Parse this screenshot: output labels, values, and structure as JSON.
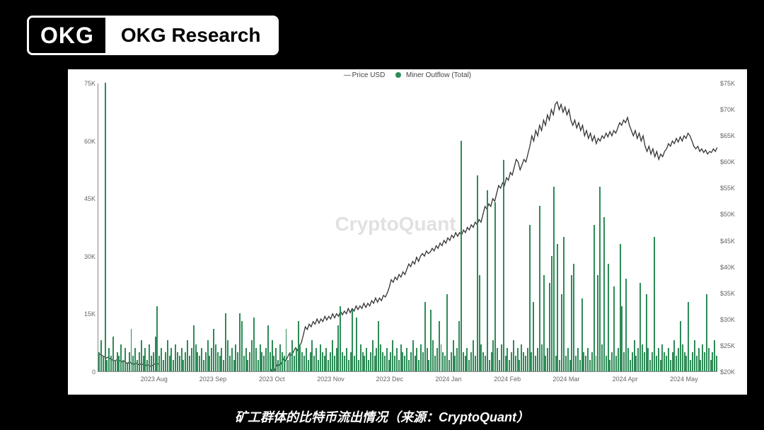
{
  "logo": {
    "left": "OKG",
    "right": "OKG Research"
  },
  "caption": "矿工群体的比特币流出情况（来源：CryptoQuant）",
  "watermark": "CryptoQuant",
  "legend": {
    "series1": "Price USD",
    "series2": "Miner Outflow (Total)",
    "line_color": "#555555",
    "dot_color": "#2e8b57"
  },
  "chart": {
    "background": "#ffffff",
    "axis_color": "#888888",
    "label_color": "#666666",
    "label_fontsize": 9,
    "left_axis": {
      "min": 0,
      "max": 75,
      "ticks": [
        0,
        15,
        30,
        45,
        60,
        75
      ],
      "labels": [
        "0",
        "15K",
        "30K",
        "45K",
        "60K",
        "75K"
      ]
    },
    "right_axis": {
      "min": 20,
      "max": 75,
      "ticks": [
        20,
        25,
        30,
        35,
        40,
        45,
        50,
        55,
        60,
        65,
        70,
        75
      ],
      "labels": [
        "$20K",
        "$25K",
        "$30K",
        "$35K",
        "$40K",
        "$45K",
        "$50K",
        "$55K",
        "$60K",
        "$65K",
        "$70K",
        "$75K"
      ]
    },
    "x_axis": {
      "labels": [
        "2023 Aug",
        "2023 Sep",
        "2023 Oct",
        "2023 Nov",
        "2023 Dec",
        "2024 Jan",
        "2024 Feb",
        "2024 Mar",
        "2024 Apr",
        "2024 May"
      ],
      "positions_pct": [
        9,
        18.5,
        28,
        37.5,
        47,
        56.5,
        66,
        75.5,
        85,
        94.5
      ]
    },
    "bars": {
      "color": "#2e8b57",
      "values": [
        5,
        8,
        4,
        75,
        3,
        6,
        4,
        9,
        3,
        5,
        4,
        7,
        3,
        6,
        2,
        5,
        11,
        4,
        6,
        3,
        5,
        8,
        4,
        6,
        3,
        7,
        4,
        5,
        9,
        17,
        4,
        6,
        3,
        5,
        8,
        4,
        6,
        3,
        7,
        5,
        4,
        6,
        3,
        5,
        8,
        4,
        6,
        12,
        7,
        5,
        4,
        6,
        3,
        5,
        8,
        4,
        6,
        11,
        7,
        5,
        4,
        6,
        3,
        15,
        8,
        4,
        6,
        3,
        7,
        5,
        15,
        13,
        4,
        6,
        3,
        5,
        8,
        14,
        6,
        3,
        7,
        5,
        4,
        6,
        12,
        5,
        8,
        4,
        6,
        3,
        7,
        5,
        4,
        11,
        3,
        5,
        8,
        4,
        6,
        13,
        7,
        5,
        4,
        6,
        3,
        5,
        8,
        4,
        6,
        3,
        7,
        5,
        4,
        6,
        3,
        5,
        8,
        4,
        6,
        12,
        17,
        5,
        4,
        6,
        3,
        5,
        16,
        4,
        14,
        3,
        7,
        5,
        4,
        6,
        3,
        5,
        8,
        4,
        6,
        13,
        7,
        5,
        4,
        6,
        3,
        5,
        8,
        4,
        6,
        3,
        7,
        5,
        4,
        6,
        3,
        5,
        8,
        4,
        6,
        3,
        7,
        5,
        18,
        6,
        3,
        16,
        8,
        4,
        6,
        13,
        7,
        5,
        4,
        20,
        3,
        5,
        8,
        4,
        6,
        13,
        60,
        5,
        4,
        6,
        3,
        5,
        8,
        4,
        51,
        25,
        7,
        5,
        4,
        47,
        3,
        5,
        8,
        44,
        6,
        3,
        7,
        55,
        4,
        6,
        3,
        5,
        8,
        4,
        6,
        3,
        7,
        5,
        4,
        6,
        38,
        5,
        18,
        4,
        6,
        43,
        7,
        25,
        4,
        6,
        23,
        30,
        48,
        4,
        33,
        3,
        20,
        35,
        4,
        6,
        3,
        25,
        28,
        4,
        6,
        3,
        19,
        5,
        4,
        6,
        3,
        5,
        38,
        4,
        25,
        48,
        7,
        40,
        4,
        28,
        3,
        5,
        22,
        4,
        6,
        33,
        17,
        5,
        24,
        6,
        3,
        5,
        8,
        4,
        6,
        23,
        7,
        5,
        20,
        6,
        3,
        5,
        35,
        4,
        6,
        3,
        7,
        5,
        4,
        6,
        3,
        5,
        8,
        4,
        6,
        13,
        7,
        5,
        4,
        18,
        3,
        5,
        8,
        4,
        6,
        3,
        7,
        5,
        20,
        6,
        3,
        5,
        8,
        4
      ]
    },
    "price": {
      "color": "#333333",
      "stroke_width": 1.3,
      "points": [
        23.5,
        23.2,
        23.0,
        22.8,
        22.5,
        22.7,
        22.4,
        22.2,
        22.0,
        22.1,
        22.3,
        22.0,
        21.8,
        22.0,
        21.7,
        21.5,
        21.8,
        21.5,
        21.3,
        21.6,
        21.4,
        21.2,
        21.5,
        21.2,
        21.0,
        21.3,
        21.1,
        20.9,
        21.2,
        21.4,
        21.6,
        21.3,
        15.0,
        16.2,
        17.0,
        16.5,
        17.5,
        17.2,
        18.0,
        17.7,
        18.5,
        18.2,
        17.0,
        15.5,
        16.0,
        15.2,
        14.5,
        15.0,
        14.0,
        14.8,
        13.8,
        14.5,
        13.5,
        14.2,
        13.8,
        14.5,
        14.0,
        14.8,
        15.0,
        14.5,
        14.8,
        15.5,
        15.2,
        16.0,
        15.5,
        16.3,
        15.8,
        16.5,
        16.0,
        16.8,
        16.3,
        17.0,
        16.5,
        17.3,
        16.8,
        17.5,
        17.0,
        17.8,
        17.3,
        18.0,
        17.5,
        18.3,
        17.8,
        18.5,
        18.0,
        18.8,
        19.5,
        19.0,
        19.8,
        20.5,
        20.0,
        20.8,
        21.5,
        21.0,
        21.8,
        22.5,
        22.0,
        22.8,
        23.5,
        23.0,
        23.8,
        24.5,
        24.0,
        24.8,
        25.5,
        27.0,
        28.5,
        28.0,
        29.0,
        28.5,
        29.5,
        29.0,
        30.0,
        29.2,
        30.0,
        29.5,
        30.5,
        29.8,
        30.5,
        30.0,
        31.0,
        30.2,
        31.0,
        30.5,
        31.5,
        30.8,
        31.5,
        31.0,
        32.0,
        31.2,
        32.0,
        31.5,
        32.5,
        31.8,
        32.5,
        32.0,
        33.0,
        32.2,
        33.0,
        32.5,
        33.5,
        33.0,
        34.0,
        33.2,
        34.0,
        33.5,
        34.5,
        34.2,
        35.0,
        36.0,
        37.5,
        37.0,
        38.0,
        37.5,
        38.5,
        38.0,
        39.0,
        38.5,
        39.5,
        40.5,
        40.0,
        41.0,
        40.5,
        41.8,
        41.0,
        42.0,
        42.5,
        42.0,
        43.0,
        42.5,
        42.8,
        43.5,
        43.0,
        44.0,
        43.5,
        44.5,
        44.0,
        45.0,
        44.5,
        45.5,
        45.0,
        46.0,
        45.5,
        46.5,
        45.8,
        46.5,
        46.0,
        47.0,
        46.5,
        47.5,
        47.0,
        48.0,
        47.5,
        48.5,
        48.0,
        49.0,
        48.5,
        50.0,
        51.5,
        51.0,
        52.0,
        51.5,
        53.0,
        52.5,
        54.0,
        55.5,
        55.0,
        56.0,
        55.5,
        57.0,
        56.5,
        58.0,
        57.5,
        59.0,
        60.5,
        60.0,
        58.5,
        59.5,
        60.5,
        60.0,
        61.5,
        63.0,
        65.0,
        64.0,
        66.0,
        65.0,
        67.0,
        66.0,
        68.0,
        67.0,
        69.0,
        68.0,
        70.0,
        69.0,
        71.0,
        71.5,
        70.0,
        71.0,
        69.5,
        70.5,
        69.0,
        70.0,
        68.0,
        67.0,
        68.0,
        66.5,
        67.5,
        66.0,
        67.0,
        65.0,
        66.0,
        64.5,
        65.5,
        64.0,
        65.0,
        63.5,
        64.5,
        64.0,
        65.0,
        64.5,
        65.5,
        64.8,
        65.8,
        65.0,
        66.0,
        65.5,
        66.5,
        67.5,
        67.0,
        68.0,
        67.5,
        68.5,
        67.0,
        66.0,
        65.0,
        66.0,
        64.5,
        65.5,
        64.0,
        65.0,
        63.0,
        62.0,
        63.0,
        61.5,
        62.5,
        61.0,
        62.0,
        60.5,
        61.5,
        61.0,
        62.0,
        62.5,
        63.5,
        63.0,
        64.0,
        63.5,
        64.5,
        63.8,
        64.8,
        64.0,
        65.0,
        64.5,
        65.5,
        65.0,
        64.0,
        63.0,
        62.5,
        63.0,
        62.0,
        62.5,
        61.8,
        62.3,
        61.5,
        62.0,
        61.8,
        62.5,
        62.0,
        62.8
      ]
    }
  }
}
